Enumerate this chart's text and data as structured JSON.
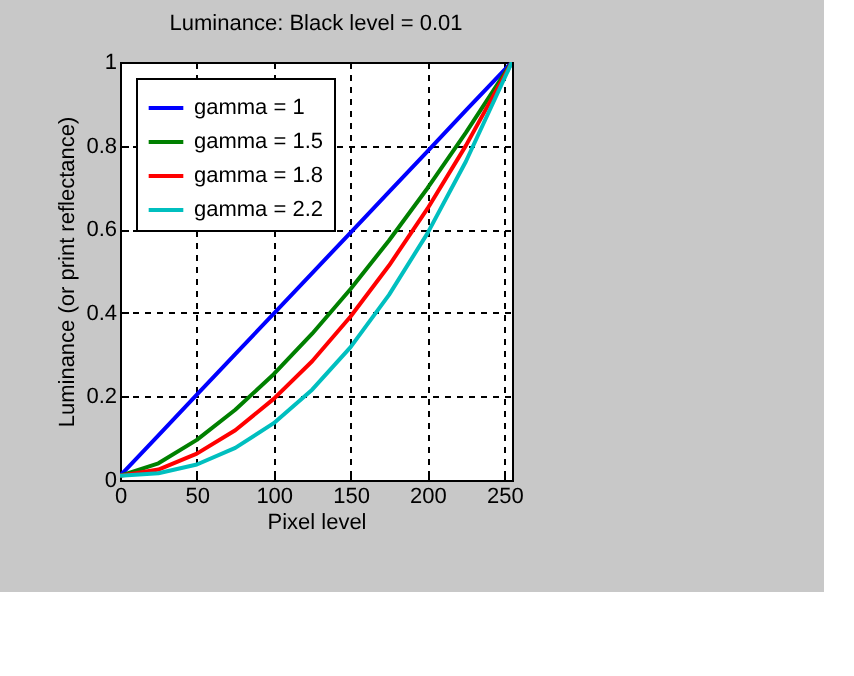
{
  "chart_data": {
    "type": "line",
    "title": "Luminance:  Black level = 0.01",
    "xlabel": "Pixel level",
    "ylabel": "Luminance (or print reflectance)",
    "xlim": [
      0,
      255
    ],
    "xticks": [
      0,
      50,
      100,
      150,
      200,
      250
    ],
    "ylim": [
      0,
      1
    ],
    "yticks": [
      0,
      0.2,
      0.4,
      0.6,
      0.8,
      1
    ],
    "grid": true,
    "legend": "top left",
    "series": [
      {
        "name": "gamma = 1",
        "color": "#0000ff",
        "x": [
          0,
          25,
          50,
          75,
          100,
          125,
          150,
          175,
          200,
          225,
          255
        ],
        "values": [
          0.01,
          0.107,
          0.204,
          0.301,
          0.398,
          0.495,
          0.592,
          0.689,
          0.786,
          0.884,
          1
        ]
      },
      {
        "name": "gamma = 1.5",
        "color": "#008000",
        "x": [
          0,
          25,
          50,
          75,
          100,
          125,
          150,
          175,
          200,
          225,
          255
        ],
        "values": [
          0.01,
          0.04,
          0.096,
          0.168,
          0.253,
          0.35,
          0.457,
          0.573,
          0.698,
          0.831,
          1
        ]
      },
      {
        "name": "gamma = 1.8",
        "color": "#ff0000",
        "x": [
          0,
          25,
          50,
          75,
          100,
          125,
          150,
          175,
          200,
          225,
          255
        ],
        "values": [
          0.01,
          0.025,
          0.063,
          0.119,
          0.194,
          0.284,
          0.391,
          0.513,
          0.649,
          0.8,
          1
        ]
      },
      {
        "name": "gamma = 2.2",
        "color": "#00bfbf",
        "x": [
          0,
          25,
          50,
          75,
          100,
          125,
          150,
          175,
          200,
          225,
          255
        ],
        "values": [
          0.01,
          0.016,
          0.037,
          0.077,
          0.136,
          0.216,
          0.318,
          0.443,
          0.59,
          0.762,
          1
        ]
      }
    ]
  }
}
